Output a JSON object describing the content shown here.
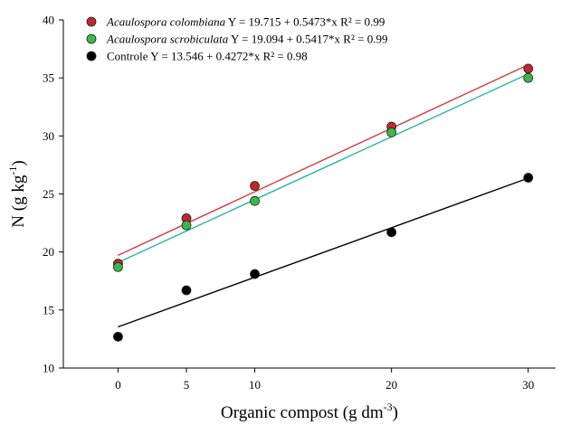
{
  "chart_data": {
    "type": "scatter",
    "x": [
      0,
      5,
      10,
      20,
      30
    ],
    "xlim": [
      -4,
      32
    ],
    "ylim": [
      10,
      40
    ],
    "xticks": [
      0,
      5,
      10,
      20,
      30
    ],
    "yticks": [
      10,
      15,
      20,
      25,
      30,
      35,
      40
    ],
    "xlabel": "Organic compost (g dm",
    "xlabel_sup": "-3",
    "xlabel_end": ")",
    "ylabel": "N (g kg",
    "ylabel_sup": "-1",
    "ylabel_end": ")",
    "grid": false,
    "legend_position": "top-left",
    "series": [
      {
        "name": "Acaulospora colombiana",
        "italic": true,
        "equation": "Y = 19.715 + 0.5473*x R² = 0.99",
        "color": "#c0272d",
        "line_color": "#d6383d",
        "values": [
          19.0,
          22.9,
          25.7,
          30.8,
          35.8
        ],
        "fit": {
          "intercept": 19.715,
          "slope": 0.5473
        }
      },
      {
        "name": "Acaulospora scrobiculata",
        "italic": true,
        "equation": "Y = 19.094 + 0.5417*x R² = 0.99",
        "color": "#3cb84a",
        "line_color": "#2ab5a5",
        "values": [
          18.7,
          22.3,
          24.4,
          30.3,
          35.0
        ],
        "fit": {
          "intercept": 19.094,
          "slope": 0.5417
        }
      },
      {
        "name": "Controle",
        "italic": false,
        "equation": "Y = 13.546 + 0.4272*x R² = 0.98",
        "color": "#000000",
        "line_color": "#000000",
        "values": [
          12.7,
          16.7,
          18.1,
          21.7,
          26.4
        ],
        "fit": {
          "intercept": 13.546,
          "slope": 0.4272
        }
      }
    ]
  }
}
